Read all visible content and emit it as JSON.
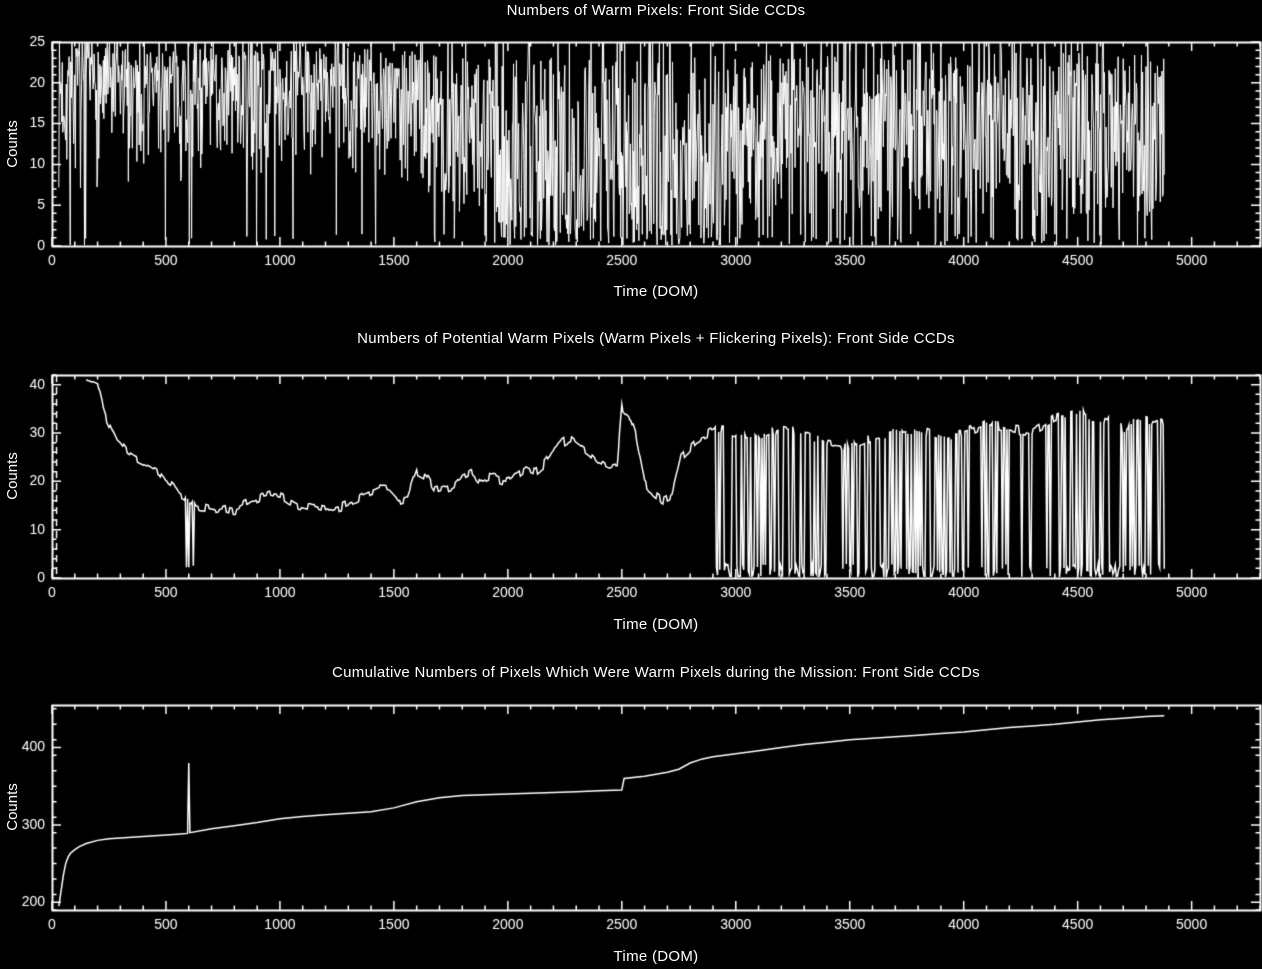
{
  "page": {
    "background": "#000000",
    "foreground": "#ffffff"
  },
  "chart_data": [
    {
      "type": "line",
      "render": "noise_band",
      "title": "Numbers of Warm Pixels: Front Side CCDs",
      "xlabel": "Time (DOM)",
      "ylabel": "Counts",
      "xlim": [
        0,
        5300
      ],
      "ylim": [
        0,
        25
      ],
      "xticks": [
        0,
        500,
        1000,
        1500,
        2000,
        2500,
        3000,
        3500,
        4000,
        4500,
        5000
      ],
      "xminor_step": 100,
      "yticks": [
        0,
        5,
        10,
        15,
        20,
        25
      ],
      "yminor_step": 1,
      "x_start": 30,
      "x_end": 4880,
      "sample_step": 2.5,
      "seed": 7,
      "envelope_lo": [
        [
          30,
          5
        ],
        [
          300,
          7
        ],
        [
          700,
          8
        ],
        [
          1200,
          8
        ],
        [
          1600,
          7
        ],
        [
          1800,
          4
        ],
        [
          2000,
          2
        ],
        [
          2300,
          1
        ],
        [
          2700,
          1
        ],
        [
          3000,
          2
        ],
        [
          3300,
          4
        ],
        [
          3700,
          3
        ],
        [
          4000,
          4
        ],
        [
          4300,
          3
        ],
        [
          4600,
          4
        ],
        [
          4880,
          2
        ]
      ],
      "envelope_hi": [
        [
          30,
          25
        ],
        [
          4880,
          25
        ]
      ],
      "skew": [
        [
          30,
          0.5
        ],
        [
          1500,
          0.6
        ],
        [
          2000,
          1.1
        ],
        [
          2600,
          1.2
        ],
        [
          3200,
          0.9
        ],
        [
          3800,
          0.85
        ],
        [
          4880,
          0.9
        ]
      ],
      "zero_spike_prob": [
        [
          30,
          0.02
        ],
        [
          1500,
          0.03
        ],
        [
          1900,
          0.08
        ],
        [
          2400,
          0.12
        ],
        [
          3300,
          0.08
        ],
        [
          4880,
          0.06
        ]
      ]
    },
    {
      "type": "line",
      "render": "stepped_line_with_dropouts",
      "title": "Numbers of Potential Warm Pixels (Warm Pixels + Flickering Pixels): Front Side CCDs",
      "xlabel": "Time (DOM)",
      "ylabel": "Counts",
      "xlim": [
        0,
        5300
      ],
      "ylim": [
        0,
        42
      ],
      "xticks": [
        0,
        500,
        1000,
        1500,
        2000,
        2500,
        3000,
        3500,
        4000,
        4500,
        5000
      ],
      "xminor_step": 100,
      "yticks": [
        0,
        10,
        20,
        30,
        40
      ],
      "yminor_step": 2,
      "seed": 11,
      "dashed_line_x": 20,
      "x_start": 150,
      "x_end": 4880,
      "sample_step": 5,
      "jitter": 1.0,
      "backbone": [
        [
          150,
          41
        ],
        [
          200,
          40
        ],
        [
          220,
          36
        ],
        [
          240,
          33
        ],
        [
          260,
          31
        ],
        [
          280,
          29
        ],
        [
          300,
          28
        ],
        [
          330,
          26
        ],
        [
          360,
          25
        ],
        [
          400,
          24
        ],
        [
          440,
          23
        ],
        [
          470,
          22
        ],
        [
          500,
          20
        ],
        [
          530,
          19
        ],
        [
          560,
          17
        ],
        [
          600,
          16
        ],
        [
          640,
          15
        ],
        [
          680,
          14.5
        ],
        [
          720,
          14
        ],
        [
          760,
          14.5
        ],
        [
          800,
          14
        ],
        [
          840,
          15
        ],
        [
          880,
          16
        ],
        [
          920,
          17
        ],
        [
          960,
          17.5
        ],
        [
          1000,
          17
        ],
        [
          1040,
          16
        ],
        [
          1080,
          15
        ],
        [
          1120,
          14.5
        ],
        [
          1160,
          14.5
        ],
        [
          1200,
          14
        ],
        [
          1240,
          14.5
        ],
        [
          1280,
          15
        ],
        [
          1320,
          16
        ],
        [
          1360,
          17
        ],
        [
          1400,
          18
        ],
        [
          1440,
          18.5
        ],
        [
          1480,
          18
        ],
        [
          1520,
          16
        ],
        [
          1560,
          16.5
        ],
        [
          1600,
          22
        ],
        [
          1640,
          21
        ],
        [
          1680,
          18
        ],
        [
          1720,
          18.5
        ],
        [
          1760,
          19
        ],
        [
          1800,
          21
        ],
        [
          1840,
          22
        ],
        [
          1880,
          20
        ],
        [
          1920,
          21
        ],
        [
          1960,
          20.5
        ],
        [
          2000,
          20
        ],
        [
          2040,
          21.5
        ],
        [
          2080,
          23
        ],
        [
          2120,
          22
        ],
        [
          2160,
          23.5
        ],
        [
          2200,
          26
        ],
        [
          2240,
          28
        ],
        [
          2280,
          29
        ],
        [
          2320,
          27.5
        ],
        [
          2360,
          26
        ],
        [
          2400,
          24
        ],
        [
          2440,
          23
        ],
        [
          2480,
          23.5
        ],
        [
          2500,
          35
        ],
        [
          2520,
          34
        ],
        [
          2540,
          33
        ],
        [
          2560,
          30
        ],
        [
          2600,
          20
        ],
        [
          2640,
          17.5
        ],
        [
          2680,
          16
        ],
        [
          2720,
          17
        ],
        [
          2760,
          25
        ],
        [
          2800,
          27
        ],
        [
          2840,
          29
        ],
        [
          2880,
          30
        ],
        [
          2920,
          31
        ],
        [
          3000,
          30
        ],
        [
          3100,
          29
        ],
        [
          3200,
          31
        ],
        [
          3300,
          30
        ],
        [
          3400,
          28
        ],
        [
          3500,
          27
        ],
        [
          3600,
          29
        ],
        [
          3700,
          30
        ],
        [
          3800,
          31
        ],
        [
          3900,
          29
        ],
        [
          4000,
          30
        ],
        [
          4100,
          32
        ],
        [
          4200,
          31
        ],
        [
          4300,
          30
        ],
        [
          4400,
          33
        ],
        [
          4500,
          34
        ],
        [
          4600,
          33
        ],
        [
          4700,
          31
        ],
        [
          4800,
          33
        ],
        [
          4880,
          32
        ]
      ],
      "dropout_regions": [
        [
          585,
          625,
          0.25
        ],
        [
          2900,
          3350,
          0.5
        ],
        [
          3350,
          3600,
          0.2
        ],
        [
          3600,
          3950,
          0.45
        ],
        [
          3950,
          4450,
          0.25
        ],
        [
          4450,
          4880,
          0.5
        ]
      ]
    },
    {
      "type": "line",
      "render": "cumulative_line",
      "title": "Cumulative Numbers of Pixels Which Were Warm Pixels during the Mission: Front Side CCDs",
      "xlabel": "Time (DOM)",
      "ylabel": "Counts",
      "xlim": [
        0,
        5300
      ],
      "ylim": [
        190,
        455
      ],
      "xticks": [
        0,
        500,
        1000,
        1500,
        2000,
        2500,
        3000,
        3500,
        4000,
        4500,
        5000
      ],
      "xminor_step": 100,
      "yticks": [
        200,
        300,
        400
      ],
      "yminor_step": 20,
      "points": [
        [
          30,
          195
        ],
        [
          40,
          215
        ],
        [
          50,
          235
        ],
        [
          60,
          250
        ],
        [
          70,
          258
        ],
        [
          80,
          263
        ],
        [
          100,
          268
        ],
        [
          120,
          272
        ],
        [
          150,
          276
        ],
        [
          200,
          280
        ],
        [
          250,
          282
        ],
        [
          300,
          283
        ],
        [
          350,
          284
        ],
        [
          400,
          285
        ],
        [
          450,
          286
        ],
        [
          500,
          287
        ],
        [
          550,
          288
        ],
        [
          595,
          289
        ],
        [
          600,
          380
        ],
        [
          605,
          290
        ],
        [
          700,
          295
        ],
        [
          800,
          299
        ],
        [
          900,
          303
        ],
        [
          1000,
          308
        ],
        [
          1100,
          311
        ],
        [
          1200,
          313
        ],
        [
          1300,
          315
        ],
        [
          1400,
          317
        ],
        [
          1500,
          322
        ],
        [
          1600,
          330
        ],
        [
          1700,
          335
        ],
        [
          1800,
          338
        ],
        [
          1900,
          339
        ],
        [
          2000,
          340
        ],
        [
          2100,
          341
        ],
        [
          2200,
          342
        ],
        [
          2300,
          343
        ],
        [
          2400,
          344
        ],
        [
          2500,
          345
        ],
        [
          2510,
          360
        ],
        [
          2600,
          363
        ],
        [
          2700,
          368
        ],
        [
          2750,
          372
        ],
        [
          2800,
          380
        ],
        [
          2850,
          385
        ],
        [
          2900,
          388
        ],
        [
          3000,
          392
        ],
        [
          3100,
          396
        ],
        [
          3200,
          400
        ],
        [
          3300,
          404
        ],
        [
          3400,
          407
        ],
        [
          3500,
          410
        ],
        [
          3600,
          412
        ],
        [
          3700,
          414
        ],
        [
          3800,
          416
        ],
        [
          3900,
          418
        ],
        [
          4000,
          420
        ],
        [
          4100,
          423
        ],
        [
          4200,
          426
        ],
        [
          4300,
          428
        ],
        [
          4400,
          430
        ],
        [
          4500,
          433
        ],
        [
          4600,
          436
        ],
        [
          4700,
          438
        ],
        [
          4800,
          440
        ],
        [
          4880,
          441
        ]
      ]
    }
  ]
}
